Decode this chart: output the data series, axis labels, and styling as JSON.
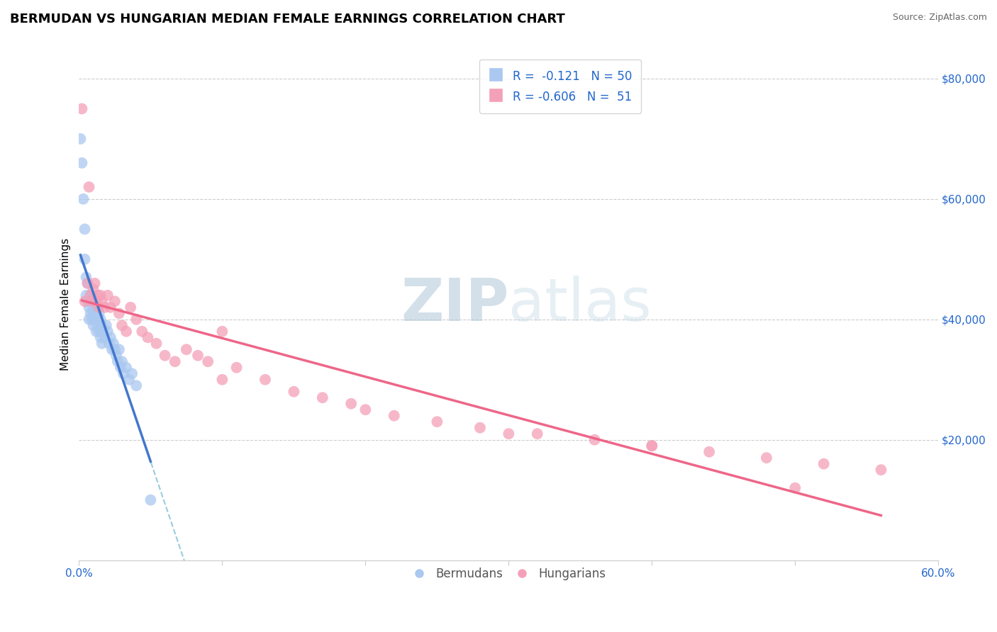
{
  "title": "BERMUDAN VS HUNGARIAN MEDIAN FEMALE EARNINGS CORRELATION CHART",
  "source": "Source: ZipAtlas.com",
  "ylabel": "Median Female Earnings",
  "xlim": [
    0.0,
    0.6
  ],
  "ylim": [
    0,
    85000
  ],
  "yticks": [
    0,
    20000,
    40000,
    60000,
    80000
  ],
  "background_color": "#ffffff",
  "grid_color": "#cccccc",
  "bermudans_color": "#aac8f0",
  "hungarians_color": "#f4a0b8",
  "bermudans_line_color": "#4477cc",
  "hungarians_line_color": "#ee6688",
  "dashed_line_color": "#99ccdd",
  "R_bermudans": -0.121,
  "N_bermudans": 50,
  "R_hungarians": -0.606,
  "N_hungarians": 51,
  "title_fontsize": 13,
  "axis_label_fontsize": 11,
  "tick_fontsize": 11,
  "legend_fontsize": 12,
  "watermark_color": "#c5d8e8",
  "watermark_fontsize": 60,
  "bermudans_x": [
    0.001,
    0.002,
    0.003,
    0.004,
    0.004,
    0.005,
    0.005,
    0.006,
    0.006,
    0.007,
    0.007,
    0.008,
    0.008,
    0.009,
    0.009,
    0.01,
    0.01,
    0.01,
    0.011,
    0.011,
    0.012,
    0.012,
    0.013,
    0.013,
    0.014,
    0.014,
    0.015,
    0.015,
    0.016,
    0.016,
    0.017,
    0.018,
    0.019,
    0.02,
    0.021,
    0.022,
    0.023,
    0.024,
    0.025,
    0.026,
    0.027,
    0.028,
    0.029,
    0.03,
    0.031,
    0.033,
    0.035,
    0.037,
    0.04,
    0.05
  ],
  "bermudans_y": [
    70000,
    66000,
    60000,
    55000,
    50000,
    47000,
    44000,
    43000,
    46000,
    42000,
    40000,
    44000,
    41000,
    43000,
    40000,
    42000,
    39000,
    41000,
    43000,
    40000,
    41000,
    38000,
    42000,
    39000,
    41000,
    38000,
    40000,
    37000,
    39000,
    36000,
    38000,
    37000,
    39000,
    38000,
    36000,
    37000,
    35000,
    36000,
    35000,
    34000,
    33000,
    35000,
    32000,
    33000,
    31000,
    32000,
    30000,
    31000,
    29000,
    10000
  ],
  "hungarians_x": [
    0.002,
    0.004,
    0.006,
    0.007,
    0.008,
    0.009,
    0.01,
    0.011,
    0.012,
    0.013,
    0.014,
    0.015,
    0.016,
    0.018,
    0.02,
    0.022,
    0.025,
    0.028,
    0.03,
    0.033,
    0.036,
    0.04,
    0.044,
    0.048,
    0.054,
    0.06,
    0.067,
    0.075,
    0.083,
    0.09,
    0.1,
    0.11,
    0.13,
    0.15,
    0.17,
    0.19,
    0.22,
    0.25,
    0.28,
    0.32,
    0.36,
    0.4,
    0.44,
    0.48,
    0.52,
    0.56,
    0.1,
    0.2,
    0.3,
    0.4,
    0.5
  ],
  "hungarians_y": [
    75000,
    43000,
    46000,
    62000,
    44000,
    43000,
    45000,
    46000,
    43000,
    44000,
    42000,
    44000,
    43000,
    42000,
    44000,
    42000,
    43000,
    41000,
    39000,
    38000,
    42000,
    40000,
    38000,
    37000,
    36000,
    34000,
    33000,
    35000,
    34000,
    33000,
    30000,
    32000,
    30000,
    28000,
    27000,
    26000,
    24000,
    23000,
    22000,
    21000,
    20000,
    19000,
    18000,
    17000,
    16000,
    15000,
    38000,
    25000,
    21000,
    19000,
    12000
  ]
}
